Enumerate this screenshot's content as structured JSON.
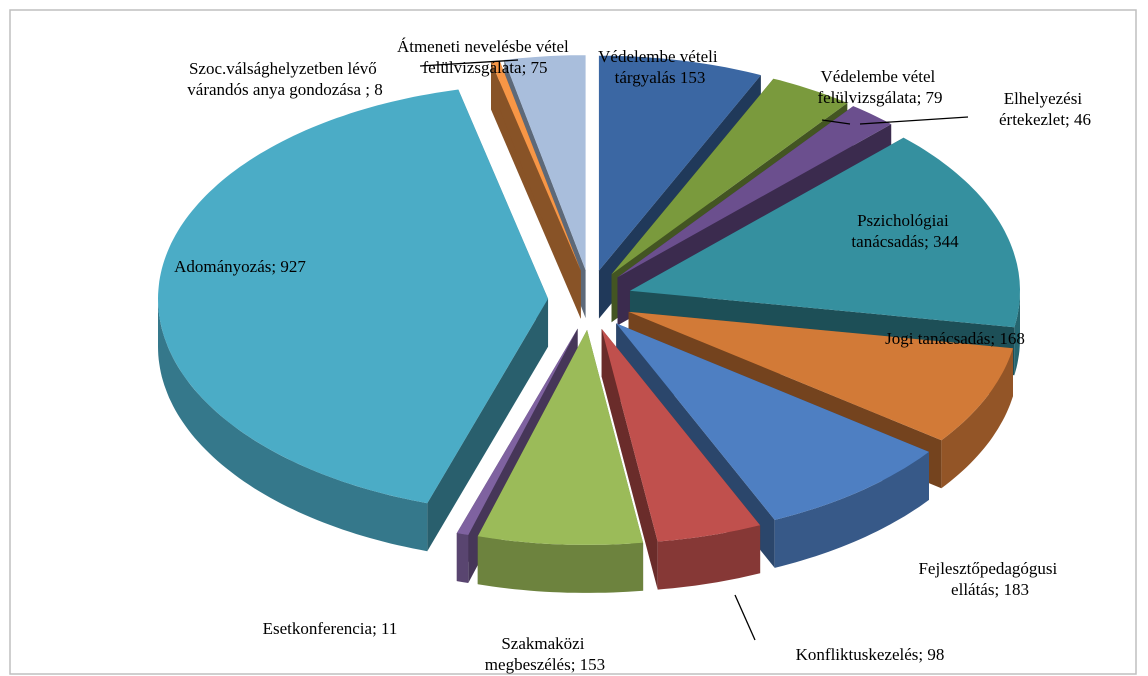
{
  "chart_data": {
    "type": "pie3d",
    "values": [
      153,
      79,
      46,
      344,
      168,
      183,
      98,
      153,
      11,
      927,
      8,
      75
    ],
    "value_labels": [
      "Védelembe vételi tárgyalás 153",
      "Védelembe vétel felülvizsgálata; 79",
      "Elhelyezési értekezlet; 46",
      "Pszichológiai tanácsadás; 344",
      "Jogi tanácsadás; 168",
      "Fejlesztőpedagógusi ellátás; 183",
      "Konfliktuskezelés; 98",
      "Szakmaközi megbeszélés; 153",
      "Esetkonferencia; 11",
      "Adományozás; 927",
      "Szoc.válsághelyzetben lévő várandós anya gondozása ; 8",
      "Átmeneti nevelésbe vétel felülvizsgálata; 75"
    ],
    "colors": [
      "#3b67a3",
      "#7a9a3d",
      "#6b4f8e",
      "#35909f",
      "#d27a37",
      "#4e7fc2",
      "#c0504d",
      "#9bbb59",
      "#7f62a0",
      "#4bacc6",
      "#f79646",
      "#a9bedc"
    ]
  }
}
